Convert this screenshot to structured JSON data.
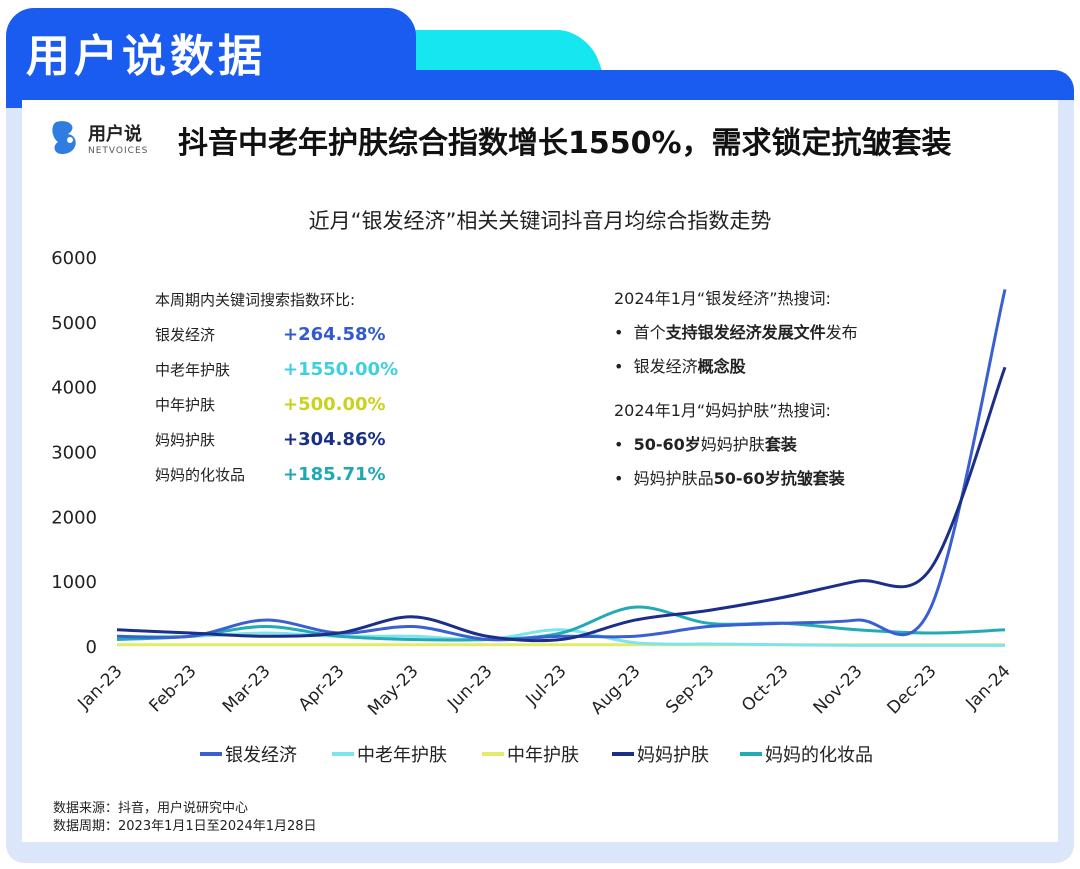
{
  "header": {
    "brand_title": "用户说数据"
  },
  "logo": {
    "name": "用户说",
    "sub": "NETVOICES"
  },
  "title": "抖音中老年护肤综合指数增长1550%，需求锁定抗皱套装",
  "stats": {
    "heading": "本周期内关键词搜索指数环比:",
    "rows": [
      {
        "label": "银发经济",
        "value": "+264.58%",
        "color": "#3358d4"
      },
      {
        "label": "中老年护肤",
        "value": "+1550.00%",
        "color": "#3fd0e0"
      },
      {
        "label": "中年护肤",
        "value": "+500.00%",
        "color": "#c9d21c"
      },
      {
        "label": "妈妈护肤",
        "value": "+304.86%",
        "color": "#1a2f86"
      },
      {
        "label": "妈妈的化妆品",
        "value": "+185.71%",
        "color": "#1fa8b4"
      }
    ]
  },
  "hot": {
    "h1": "2024年1月“银发经济”热搜词:",
    "items1": [
      {
        "pre": "首个",
        "bold": "支持银发经济发展文件",
        "post": "发布"
      },
      {
        "pre": "银发经济",
        "bold": "概念股",
        "post": ""
      }
    ],
    "h2": "2024年1月“妈妈护肤”热搜词:",
    "items2": [
      {
        "pre": "",
        "bold": "50-60岁",
        "post": "妈妈护肤",
        "bold2": "套装"
      },
      {
        "pre": "妈妈护肤品",
        "bold": "50-60岁抗皱套装",
        "post": "",
        "bold2": ""
      }
    ]
  },
  "source": {
    "line1": "数据来源：抖音，用户说研究中心",
    "line2": "数据周期：2023年1月1日至2024年1月28日"
  },
  "chart_data": {
    "type": "line",
    "title": "近月“银发经济”相关关键词抖音月均综合指数走势",
    "categories": [
      "Jan-23",
      "Feb-23",
      "Mar-23",
      "Apr-23",
      "May-23",
      "Jun-23",
      "Jul-23",
      "Aug-23",
      "Sep-23",
      "Oct-23",
      "Nov-23",
      "Dec-23",
      "Jan-24"
    ],
    "ylim": [
      0,
      6000
    ],
    "yticks": [
      0,
      1000,
      2000,
      3000,
      4000,
      5000,
      6000
    ],
    "legend": "bottom",
    "grid": false,
    "series": [
      {
        "name": "银发经济",
        "color": "#3a5fd0",
        "values": [
          150,
          150,
          400,
          200,
          300,
          100,
          150,
          150,
          300,
          350,
          400,
          600,
          5500
        ]
      },
      {
        "name": "中老年护肤",
        "color": "#7fe3ee",
        "values": [
          150,
          150,
          200,
          150,
          150,
          100,
          250,
          50,
          30,
          20,
          10,
          10,
          10
        ]
      },
      {
        "name": "中年护肤",
        "color": "#e3ec6a",
        "values": [
          20,
          20,
          20,
          20,
          20,
          20,
          20,
          20,
          20,
          20,
          20,
          20,
          20
        ]
      },
      {
        "name": "妈妈护肤",
        "color": "#1c2f88",
        "values": [
          250,
          200,
          150,
          200,
          450,
          150,
          100,
          400,
          550,
          750,
          1000,
          1200,
          4300
        ]
      },
      {
        "name": "妈妈的化妆品",
        "color": "#22aab6",
        "values": [
          100,
          150,
          300,
          150,
          100,
          100,
          200,
          600,
          350,
          350,
          250,
          200,
          250
        ]
      }
    ]
  }
}
